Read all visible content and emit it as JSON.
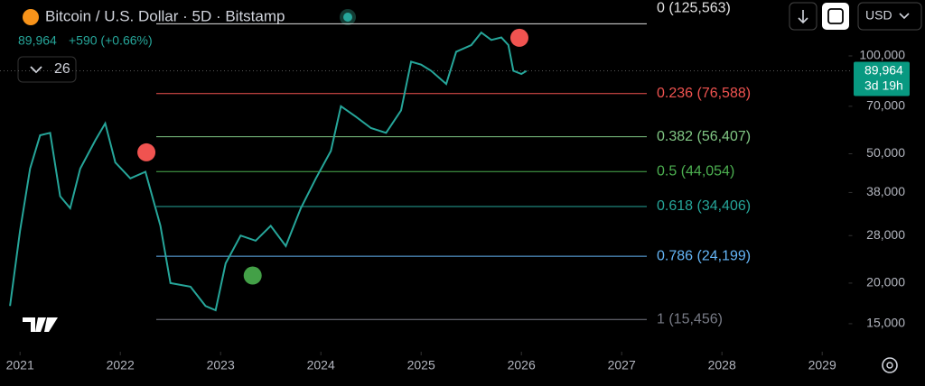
{
  "header": {
    "title": "Bitcoin / U.S. Dollar · 5D · Bitstamp",
    "change": "+590 (+0.66%)",
    "indicators": "26",
    "currency": "USD"
  },
  "chart_data": {
    "type": "line",
    "log_scale": true,
    "x": [
      2020.9,
      2021.0,
      2021.1,
      2021.2,
      2021.3,
      2021.4,
      2021.5,
      2021.6,
      2021.75,
      2021.85,
      2021.95,
      2022.1,
      2022.25,
      2022.4,
      2022.5,
      2022.7,
      2022.85,
      2022.95,
      2023.05,
      2023.2,
      2023.35,
      2023.5,
      2023.65,
      2023.8,
      2023.95,
      2024.1,
      2024.2,
      2024.35,
      2024.5,
      2024.65,
      2024.8,
      2024.9,
      2025.0,
      2025.1,
      2025.25,
      2025.35,
      2025.5,
      2025.6,
      2025.7,
      2025.8,
      2025.87,
      2025.92,
      2026.0,
      2026.05
    ],
    "series": [
      {
        "color": "#26a69a",
        "values": [
          17000,
          29000,
          45000,
          57000,
          58000,
          37000,
          34000,
          45000,
          55000,
          62000,
          47000,
          42000,
          44000,
          30000,
          20000,
          19500,
          17000,
          16500,
          23000,
          28000,
          27000,
          30000,
          26000,
          34000,
          42000,
          51000,
          70000,
          65000,
          60000,
          58000,
          68000,
          96000,
          94000,
          90000,
          82000,
          103000,
          108000,
          118000,
          112000,
          114000,
          108000,
          90000,
          88000,
          89964
        ]
      }
    ],
    "xlim": [
      2020.8,
      2029.3
    ],
    "xticks": [
      2021,
      2022,
      2023,
      2024,
      2025,
      2026,
      2027,
      2028,
      2029
    ],
    "ylim": [
      12300,
      148600
    ],
    "yticks": [
      {
        "value": 15000,
        "label": "15,000"
      },
      {
        "value": 20000,
        "label": "20,000"
      },
      {
        "value": 28000,
        "label": "28,000"
      },
      {
        "value": 38000,
        "label": "38,000"
      },
      {
        "value": 50000,
        "label": "50,000"
      },
      {
        "value": 70000,
        "label": "70,000"
      },
      {
        "value": 100000,
        "label": "100,000"
      }
    ],
    "fib_levels": {
      "values": [
        125563,
        76588,
        56407,
        44054,
        34406,
        24199,
        15456
      ],
      "value_labels": [
        "0 (125,563)",
        "0.236 (76,588)",
        "0.382 (56,407)",
        "0.5 (44,054)",
        "0.618 (34,406)",
        "0.786 (24,199)",
        "1 (15,456)"
      ],
      "colors": [
        "#e0e0e0",
        "#f05350",
        "#81c784",
        "#4caf50",
        "#26a69a",
        "#64b5f6",
        "#787b86"
      ]
    },
    "signals": {
      "x": [
        2022.26,
        2025.98,
        2023.32
      ],
      "values": [
        50500,
        113700,
        21100
      ],
      "colors": [
        "#f05350",
        "#f05350",
        "#43a047"
      ]
    },
    "last_price": {
      "value": 89964,
      "label": "89,964"
    },
    "countdown": "3d 19h"
  }
}
